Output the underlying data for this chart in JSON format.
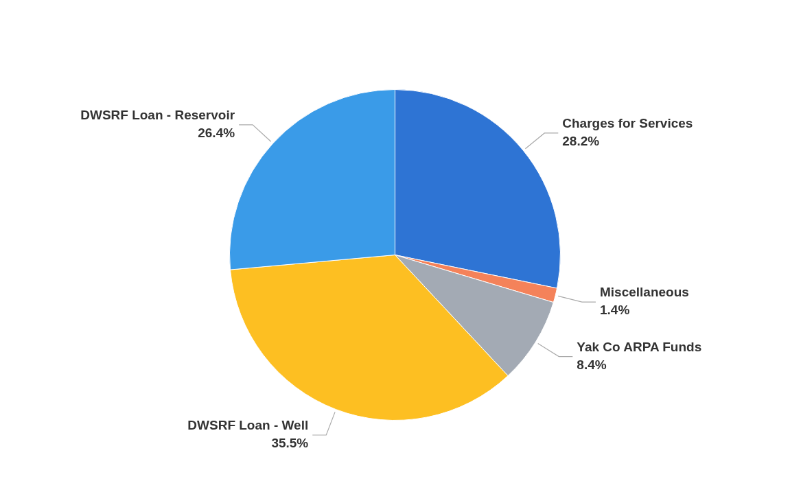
{
  "chart_data": {
    "type": "pie",
    "categories": [
      "Charges for Services",
      "Miscellaneous",
      "Yak Co ARPA Funds",
      "DWSRF Loan - Well",
      "DWSRF Loan - Reservoir"
    ],
    "values": [
      28.2,
      1.4,
      8.4,
      35.5,
      26.4
    ],
    "value_labels": [
      "28.2%",
      "1.4%",
      "8.4%",
      "35.5%",
      "26.4%"
    ],
    "colors": [
      "#2e74d4",
      "#f4825a",
      "#a3aab4",
      "#fdbf22",
      "#3a9be8"
    ],
    "legend": false
  }
}
